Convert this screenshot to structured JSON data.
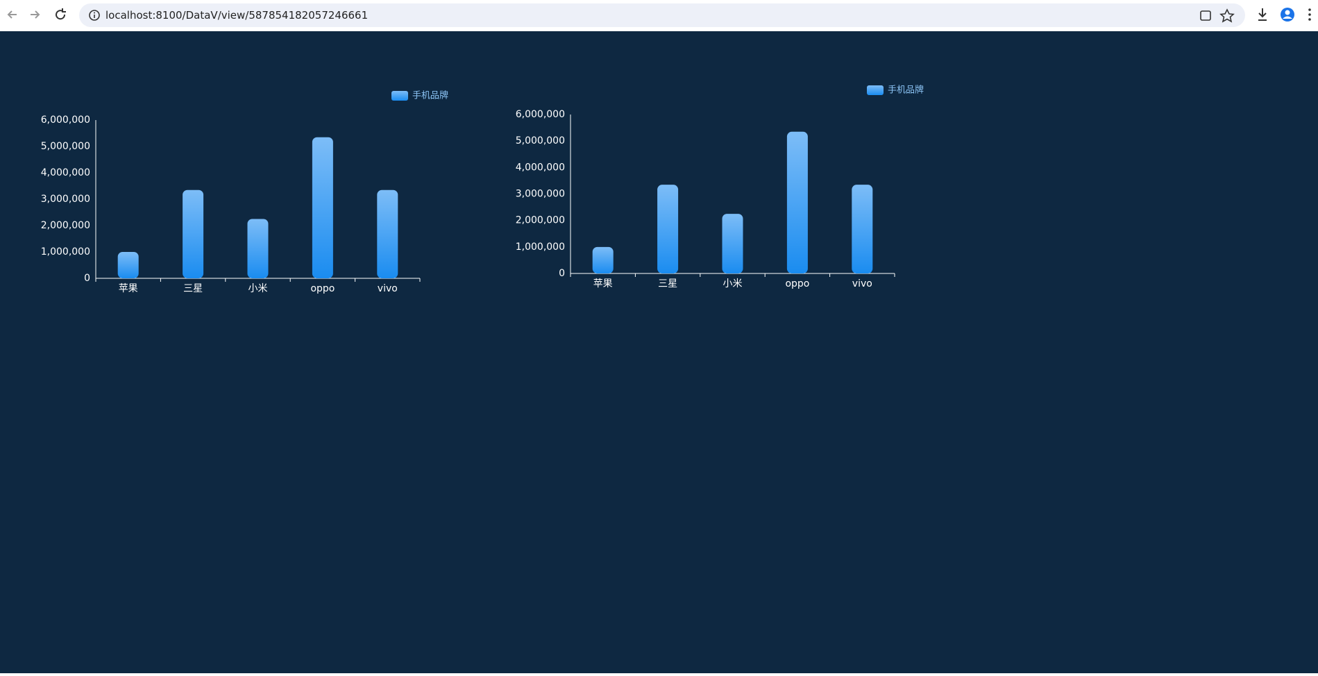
{
  "browser": {
    "url": "localhost:8100/DataV/view/587854182057246661"
  },
  "chart_data": [
    {
      "type": "bar",
      "categories": [
        "苹果",
        "三星",
        "小米",
        "oppo",
        "vivo"
      ],
      "series": [
        {
          "name": "手机品牌",
          "color": "#1a8cf0",
          "values": [
            1000000,
            3350000,
            2250000,
            5350000,
            3350000
          ]
        }
      ],
      "ylim": [
        0,
        6000000
      ],
      "yticks": [
        0,
        {
          "value": 1000000,
          "label": "1,000,000"
        },
        {
          "value": 2000000,
          "label": "2,000,000"
        },
        {
          "value": 3000000,
          "label": "3,000,000"
        },
        {
          "value": 4000000,
          "label": "4,000,000"
        },
        {
          "value": 5000000,
          "label": "5,000,000"
        },
        {
          "value": 6000000,
          "label": "6,000,000"
        }
      ],
      "legend": "top-right"
    },
    {
      "type": "bar",
      "categories": [
        "苹果",
        "三星",
        "小米",
        "oppo",
        "vivo"
      ],
      "series": [
        {
          "name": "手机品牌",
          "color": "#1a8cf0",
          "values": [
            1000000,
            3350000,
            2250000,
            5350000,
            3350000
          ]
        }
      ],
      "ylim": [
        0,
        6000000
      ],
      "yticks": [
        0,
        {
          "value": 1000000,
          "label": "1,000,000"
        },
        {
          "value": 2000000,
          "label": "2,000,000"
        },
        {
          "value": 3000000,
          "label": "3,000,000"
        },
        {
          "value": 4000000,
          "label": "4,000,000"
        },
        {
          "value": 5000000,
          "label": "5,000,000"
        },
        {
          "value": 6000000,
          "label": "6,000,000"
        }
      ],
      "legend": "top-right"
    }
  ]
}
